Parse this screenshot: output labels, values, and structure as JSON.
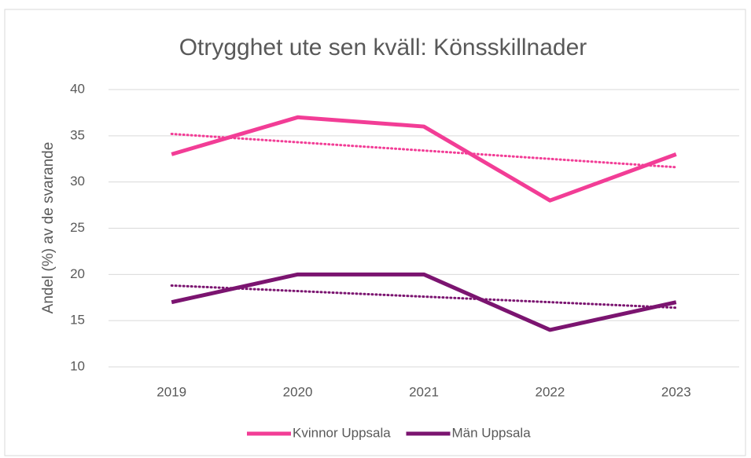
{
  "chart_data": {
    "type": "line",
    "title": "Otrygghet ute sen kväll: Könsskillnader",
    "ylabel": "Andel (%) av de svarande",
    "categories": [
      "2019",
      "2020",
      "2021",
      "2022",
      "2023"
    ],
    "series": [
      {
        "name": "Kvinnor Uppsala",
        "color": "#f23d96",
        "values": [
          33,
          37,
          36,
          28,
          33
        ]
      },
      {
        "name": "Män Uppsala",
        "color": "#7b1470",
        "values": [
          17,
          20,
          20,
          14,
          17
        ]
      }
    ],
    "ylim": [
      10,
      40
    ],
    "yticks": [
      10,
      15,
      20,
      25,
      30,
      35,
      40
    ],
    "grid": true,
    "trendline": "linear",
    "legend": "bottom"
  }
}
